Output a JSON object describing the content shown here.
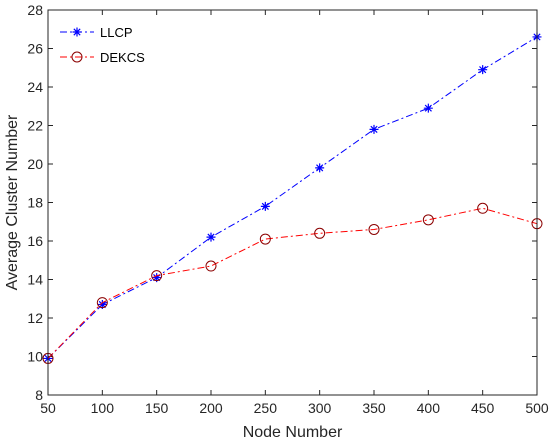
{
  "chart_data": {
    "type": "line",
    "xlabel": "Node Number",
    "ylabel": "Average Cluster Number",
    "xlim": [
      50,
      500
    ],
    "ylim": [
      8,
      28
    ],
    "xticks": [
      "50",
      "100",
      "150",
      "200",
      "250",
      "300",
      "350",
      "400",
      "450",
      "500"
    ],
    "yticks": [
      "8",
      "10",
      "12",
      "14",
      "16",
      "18",
      "20",
      "22",
      "24",
      "26",
      "28"
    ],
    "x": [
      50,
      100,
      150,
      200,
      250,
      300,
      350,
      400,
      450,
      500
    ],
    "grid": false,
    "legend_position": "top-left",
    "series": [
      {
        "name": "LLCP",
        "color": "#0000ff",
        "marker": "asterisk",
        "line_style": "dash-dot",
        "values": [
          9.9,
          12.7,
          14.1,
          16.2,
          17.8,
          19.8,
          21.8,
          22.9,
          24.9,
          26.6
        ]
      },
      {
        "name": "DEKCS",
        "color": "#ff0000",
        "marker_color": "#8b0000",
        "marker": "circle",
        "line_style": "dash-dot",
        "values": [
          9.9,
          12.8,
          14.2,
          14.7,
          16.1,
          16.4,
          16.6,
          17.1,
          17.7,
          16.9
        ]
      }
    ]
  }
}
